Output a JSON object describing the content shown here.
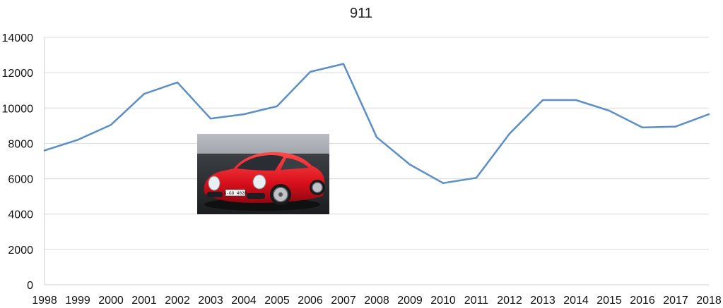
{
  "chart_data": {
    "type": "line",
    "title": "911",
    "xlabel": "",
    "ylabel": "",
    "ylim": [
      0,
      14000
    ],
    "yticks": [
      0,
      2000,
      4000,
      6000,
      8000,
      10000,
      12000,
      14000
    ],
    "grid": true,
    "legend": "none",
    "categories": [
      "1998",
      "1999",
      "2000",
      "2001",
      "2002",
      "2003",
      "2004",
      "2005",
      "2006",
      "2007",
      "2008",
      "2009",
      "2010",
      "2011",
      "2012",
      "2013",
      "2014",
      "2015",
      "2016",
      "2017",
      "2018"
    ],
    "series": [
      {
        "color": "#5b8fc7",
        "values": [
          7600,
          8200,
          9050,
          10800,
          11450,
          9400,
          9650,
          10100,
          12050,
          12500,
          8350,
          6800,
          5750,
          6050,
          8550,
          10450,
          10450,
          9850,
          8900,
          8950,
          9650
        ]
      }
    ]
  },
  "inset_image": {
    "icon": "red-sports-car-photo",
    "plate_text": "S-GO 4020"
  }
}
